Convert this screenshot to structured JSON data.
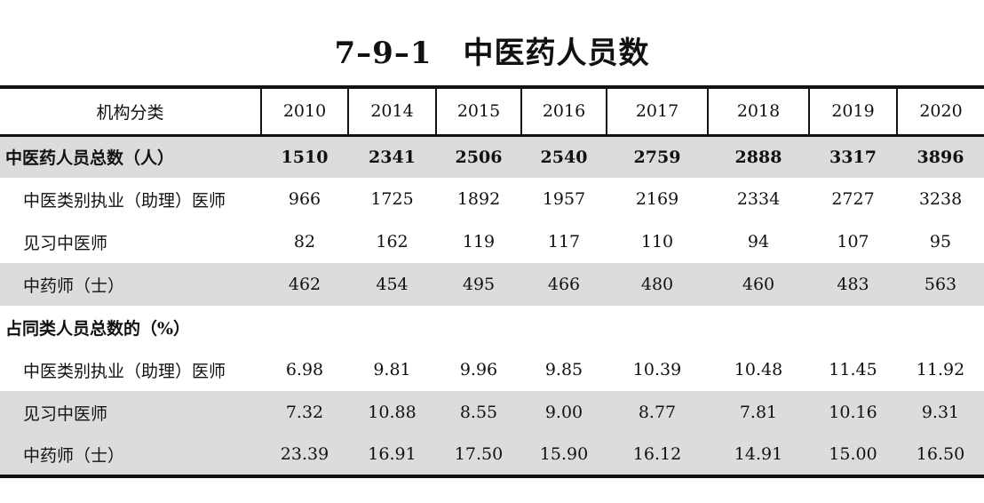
{
  "title": "7–9–1　中医药人员数",
  "header": {
    "category": "机构分类",
    "years": [
      "2010",
      "2014",
      "2015",
      "2016",
      "2017",
      "2018",
      "2019",
      "2020"
    ]
  },
  "rows": [
    {
      "label": "中医药人员总数（人）",
      "values": [
        "1510",
        "2341",
        "2506",
        "2540",
        "2759",
        "2888",
        "3317",
        "3896"
      ]
    },
    {
      "label": "中医类别执业（助理）医师",
      "values": [
        "966",
        "1725",
        "1892",
        "1957",
        "2169",
        "2334",
        "2727",
        "3238"
      ]
    },
    {
      "label": "见习中医师",
      "values": [
        "82",
        "162",
        "119",
        "117",
        "110",
        "94",
        "107",
        "95"
      ]
    },
    {
      "label": "中药师（士）",
      "values": [
        "462",
        "454",
        "495",
        "466",
        "480",
        "460",
        "483",
        "563"
      ]
    },
    {
      "label": "占同类人员总数的（%）"
    },
    {
      "label": "中医类别执业（助理）医师",
      "values": [
        "6.98",
        "9.81",
        "9.96",
        "9.85",
        "10.39",
        "10.48",
        "11.45",
        "11.92"
      ]
    },
    {
      "label": "见习中医师",
      "values": [
        "7.32",
        "10.88",
        "8.55",
        "9.00",
        "8.77",
        "7.81",
        "10.16",
        "9.31"
      ]
    },
    {
      "label": "中药师（士）",
      "values": [
        "23.39",
        "16.91",
        "17.50",
        "15.90",
        "16.12",
        "14.91",
        "15.00",
        "16.50"
      ]
    }
  ]
}
